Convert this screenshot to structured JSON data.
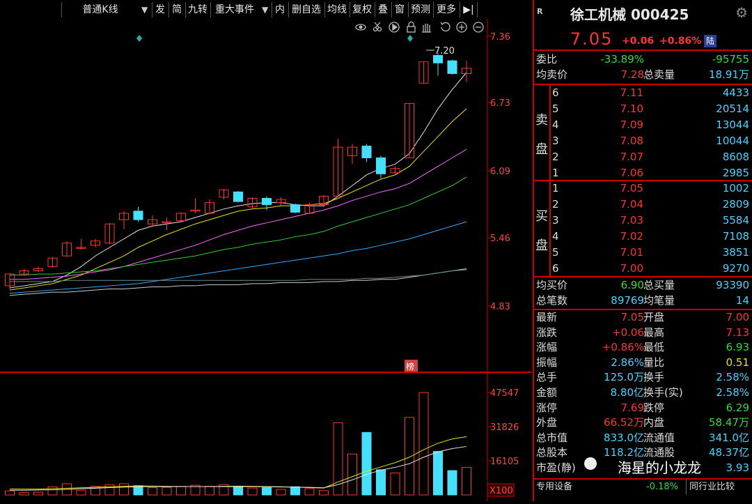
{
  "toolbar": {
    "items": [
      "普通K线",
      "发",
      "简",
      "九转",
      "重大事件",
      "内",
      "删自选",
      "均线",
      "复权",
      "叠",
      "窗",
      "预测",
      "更多"
    ],
    "dropdown_arrow": "▼",
    "expand_icon": "▶|"
  },
  "chart": {
    "price_ticks": [
      "7.36",
      "6.73",
      "6.09",
      "5.46",
      "4.83"
    ],
    "high_marker": "7.20",
    "badge": "榜",
    "volume_ticks": [
      "47547",
      "31826",
      "16105"
    ],
    "volume_unit": "X100"
  },
  "stock": {
    "badge": "R",
    "name": "徐工机械 000425",
    "price": "7.05",
    "change": "+0.06",
    "change_pct": "+0.86%",
    "market_tag": "陆"
  },
  "order": {
    "weibi_label": "委比",
    "weibi_pct": "-33.89%",
    "weibi_val": "-95755",
    "avg_sell_label": "均卖价",
    "avg_sell": "7.28",
    "total_sell_label": "总卖量",
    "total_sell": "18.91万",
    "sell_label_1": "卖",
    "sell_label_2": "盘",
    "buy_label_1": "买",
    "buy_label_2": "盘",
    "sell": [
      {
        "lv": "6",
        "price": "7.11",
        "vol": "4433"
      },
      {
        "lv": "5",
        "price": "7.10",
        "vol": "20514"
      },
      {
        "lv": "4",
        "price": "7.09",
        "vol": "13044"
      },
      {
        "lv": "3",
        "price": "7.08",
        "vol": "10044"
      },
      {
        "lv": "2",
        "price": "7.07",
        "vol": "8608"
      },
      {
        "lv": "1",
        "price": "7.06",
        "vol": "2985"
      }
    ],
    "buy": [
      {
        "lv": "1",
        "price": "7.05",
        "vol": "1002"
      },
      {
        "lv": "2",
        "price": "7.04",
        "vol": "2809"
      },
      {
        "lv": "3",
        "price": "7.03",
        "vol": "5584"
      },
      {
        "lv": "4",
        "price": "7.02",
        "vol": "7108"
      },
      {
        "lv": "5",
        "price": "7.01",
        "vol": "3851"
      },
      {
        "lv": "6",
        "price": "7.00",
        "vol": "9270"
      }
    ],
    "avg_buy_label": "均买价",
    "avg_buy": "6.90",
    "total_buy_label": "总买量",
    "total_buy": "93390",
    "total_trades_label": "总笔数",
    "total_trades": "89769",
    "avg_trade_label": "均笔量",
    "avg_trade": "14"
  },
  "stats": [
    {
      "l1": "最新",
      "v1": "7.05",
      "c1": "red",
      "l2": "开盘",
      "v2": "7.00",
      "c2": "red"
    },
    {
      "l1": "涨跌",
      "v1": "+0.06",
      "c1": "red",
      "l2": "最高",
      "v2": "7.13",
      "c2": "red"
    },
    {
      "l1": "涨幅",
      "v1": "+0.86%",
      "c1": "red",
      "l2": "最低",
      "v2": "6.93",
      "c2": "green"
    },
    {
      "l1": "振幅",
      "v1": "2.86%",
      "c1": "cyan",
      "l2": "量比",
      "v2": "0.51",
      "c2": "yellow"
    },
    {
      "l1": "总手",
      "v1": "125.0万",
      "c1": "cyan",
      "l2": "换手",
      "v2": "2.58%",
      "c2": "cyan"
    },
    {
      "l1": "金额",
      "v1": "8.80亿",
      "c1": "cyan",
      "l2": "换手(实)",
      "v2": "2.58%",
      "c2": "cyan"
    },
    {
      "l1": "涨停",
      "v1": "7.69",
      "c1": "red",
      "l2": "跌停",
      "v2": "6.29",
      "c2": "green"
    },
    {
      "l1": "外盘",
      "v1": "66.52万",
      "c1": "red",
      "l2": "内盘",
      "v2": "58.47万",
      "c2": "green"
    },
    {
      "l1": "总市值",
      "v1": "833.0亿",
      "c1": "cyan",
      "l2": "流通值",
      "v2": "341.0亿",
      "c2": "cyan"
    },
    {
      "l1": "总股本",
      "v1": "118.2亿",
      "c1": "cyan",
      "l2": "流通股",
      "v2": "48.37亿",
      "c2": "cyan"
    },
    {
      "l1": "市盈(静)",
      "v1": "",
      "c1": "cyan",
      "l2": "",
      "v2": "3.93",
      "c2": "cyan"
    }
  ],
  "footer": {
    "special": "专用设备",
    "special_pct": "-0.18%",
    "compare": "同行业比较"
  },
  "watermark": "海星的小龙龙",
  "colors": {
    "up": "#ff3333",
    "down": "#44e0ff",
    "frame": "#cc0000"
  }
}
